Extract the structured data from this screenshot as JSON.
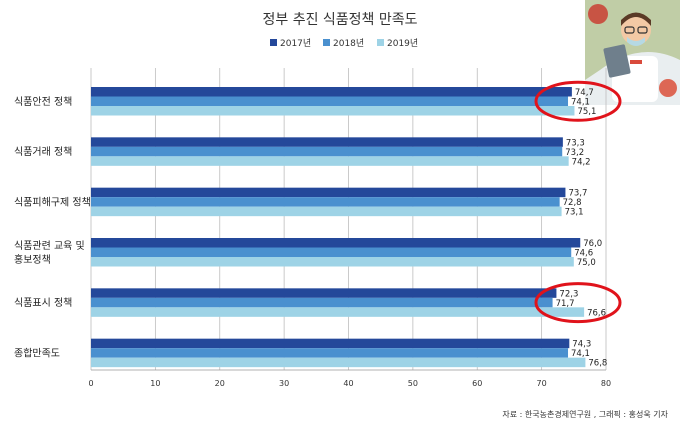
{
  "chart_data": {
    "type": "bar",
    "orientation": "horizontal",
    "title": "정부 추진 식품정책 만족도",
    "categories": [
      "식품안전 정책",
      "식품거래 정책",
      "식품피해구제 정책",
      "식품관련 교육 및 홍보정책",
      "식품표시 정책",
      "종합만족도"
    ],
    "category_lines": [
      [
        "식품안전 정책"
      ],
      [
        "식품거래 정책"
      ],
      [
        "식품피해구제 정책"
      ],
      [
        "식품관련 교육 및",
        "홍보정책"
      ],
      [
        "식품표시 정책"
      ],
      [
        "종합만족도"
      ]
    ],
    "series": [
      {
        "name": "2017년",
        "color": "#24489a",
        "values": [
          74.7,
          73.3,
          73.7,
          76.0,
          72.3,
          74.3
        ],
        "labels": [
          "74,7",
          "73,3",
          "73,7",
          "76,0",
          "72,3",
          "74,3"
        ]
      },
      {
        "name": "2018년",
        "color": "#4a90cf",
        "values": [
          74.1,
          73.2,
          72.8,
          74.6,
          71.7,
          74.1
        ],
        "labels": [
          "74,1",
          "73,2",
          "72,8",
          "74,6",
          "71,7",
          "74,1"
        ]
      },
      {
        "name": "2019년",
        "color": "#9ed3e6",
        "values": [
          75.1,
          74.2,
          73.1,
          75.0,
          76.6,
          76.8
        ],
        "labels": [
          "75,1",
          "74,2",
          "73,1",
          "75,0",
          "76,6",
          "76,8"
        ]
      }
    ],
    "xlim": [
      0,
      80
    ],
    "xticks": [
      0,
      10,
      20,
      30,
      40,
      50,
      60,
      70,
      80
    ],
    "grid": true,
    "legend_position": "top-center",
    "highlighted_categories": [
      0,
      4
    ],
    "highlight_color": "#e0131b"
  },
  "source_note": "자료 : 한국농촌경제연구원 , 그래픽 : 홍성욱 기자"
}
